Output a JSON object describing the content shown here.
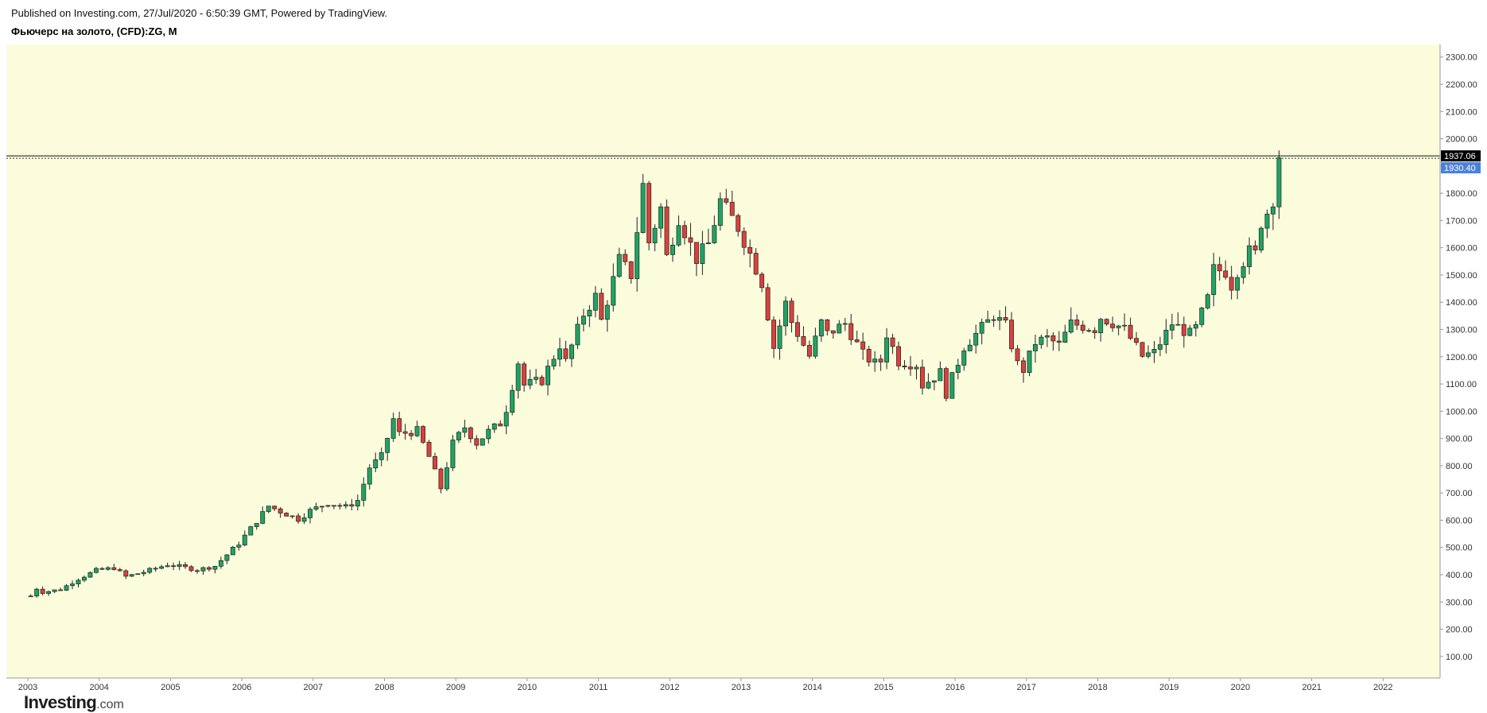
{
  "header": {
    "published": "Published on Investing.com, 27/Jul/2020 - 6:50:39 GMT, Powered by TradingView.",
    "symbol": "Фьючерс на золото, (CFD):ZG, M"
  },
  "logo": {
    "brand": "Investing",
    "suffix": ".com"
  },
  "colors": {
    "background": "#fafcdc",
    "up": "#1fa463",
    "down": "#d9413d",
    "last_price_bg": "#000000",
    "prev_price_bg": "#4a80d9"
  },
  "chart_data": {
    "type": "candlestick",
    "interval": "M",
    "y_range": [
      50,
      2340
    ],
    "y_ticks": [
      100,
      200,
      300,
      400,
      500,
      600,
      700,
      800,
      900,
      1000,
      1100,
      1200,
      1300,
      1400,
      1500,
      1600,
      1700,
      1800,
      1900,
      2000,
      2100,
      2200,
      2300
    ],
    "x_years": [
      "2003",
      "2004",
      "2005",
      "2006",
      "2007",
      "2008",
      "2009",
      "2010",
      "2011",
      "2012",
      "2013",
      "2014",
      "2015",
      "2016",
      "2017",
      "2018",
      "2019",
      "2020",
      "2021",
      "2022"
    ],
    "last_price": "1937.06",
    "prev_price": "1930.40",
    "grid": false,
    "anchors": [
      [
        "2003-01",
        322
      ],
      [
        "2003-02",
        350
      ],
      [
        "2003-03",
        336
      ],
      [
        "2003-06",
        346
      ],
      [
        "2003-09",
        385
      ],
      [
        "2003-12",
        416
      ],
      [
        "2004-03",
        425
      ],
      [
        "2004-05",
        393
      ],
      [
        "2004-08",
        410
      ],
      [
        "2004-12",
        437
      ],
      [
        "2005-02",
        430
      ],
      [
        "2005-05",
        418
      ],
      [
        "2005-08",
        432
      ],
      [
        "2005-12",
        515
      ],
      [
        "2006-05",
        652
      ],
      [
        "2006-07",
        632
      ],
      [
        "2006-10",
        604
      ],
      [
        "2006-12",
        635
      ],
      [
        "2007-03",
        664
      ],
      [
        "2007-06",
        648
      ],
      [
        "2007-08",
        673
      ],
      [
        "2007-10",
        794
      ],
      [
        "2007-12",
        834
      ],
      [
        "2008-02",
        971
      ],
      [
        "2008-03",
        917
      ],
      [
        "2008-06",
        928
      ],
      [
        "2008-08",
        833
      ],
      [
        "2008-10",
        718
      ],
      [
        "2008-12",
        882
      ],
      [
        "2009-02",
        942
      ],
      [
        "2009-04",
        883
      ],
      [
        "2009-06",
        926
      ],
      [
        "2009-08",
        955
      ],
      [
        "2009-09",
        1009
      ],
      [
        "2009-11",
        1180
      ],
      [
        "2009-12",
        1096
      ],
      [
        "2010-03",
        1113
      ],
      [
        "2010-06",
        1244
      ],
      [
        "2010-07",
        1181
      ],
      [
        "2010-10",
        1357
      ],
      [
        "2010-12",
        1421
      ],
      [
        "2011-01",
        1332
      ],
      [
        "2011-04",
        1556
      ],
      [
        "2011-06",
        1500
      ],
      [
        "2011-08",
        1829
      ],
      [
        "2011-09",
        1620
      ],
      [
        "2011-11",
        1746
      ],
      [
        "2011-12",
        1566
      ],
      [
        "2012-02",
        1711
      ],
      [
        "2012-05",
        1560
      ],
      [
        "2012-07",
        1614
      ],
      [
        "2012-09",
        1772
      ],
      [
        "2012-12",
        1675
      ],
      [
        "2013-02",
        1578
      ],
      [
        "2013-04",
        1472
      ],
      [
        "2013-06",
        1234
      ],
      [
        "2013-08",
        1396
      ],
      [
        "2013-09",
        1327
      ],
      [
        "2013-12",
        1202
      ],
      [
        "2014-02",
        1325
      ],
      [
        "2014-03",
        1284
      ],
      [
        "2014-06",
        1322
      ],
      [
        "2014-09",
        1208
      ],
      [
        "2014-11",
        1175
      ],
      [
        "2014-12",
        1184
      ],
      [
        "2015-01",
        1284
      ],
      [
        "2015-03",
        1183
      ],
      [
        "2015-06",
        1172
      ],
      [
        "2015-07",
        1095
      ],
      [
        "2015-10",
        1142
      ],
      [
        "2015-11",
        1065
      ],
      [
        "2016-02",
        1238
      ],
      [
        "2016-07",
        1351
      ],
      [
        "2016-09",
        1313
      ],
      [
        "2016-11",
        1173
      ],
      [
        "2016-12",
        1152
      ],
      [
        "2017-02",
        1253
      ],
      [
        "2017-04",
        1268
      ],
      [
        "2017-06",
        1242
      ],
      [
        "2017-08",
        1322
      ],
      [
        "2017-12",
        1303
      ],
      [
        "2018-01",
        1345
      ],
      [
        "2018-03",
        1325
      ],
      [
        "2018-05",
        1300
      ],
      [
        "2018-08",
        1202
      ],
      [
        "2018-10",
        1215
      ],
      [
        "2019-01",
        1322
      ],
      [
        "2019-04",
        1283
      ],
      [
        "2019-05",
        1305
      ],
      [
        "2019-07",
        1413
      ],
      [
        "2019-08",
        1520
      ],
      [
        "2019-10",
        1513
      ],
      [
        "2019-11",
        1463
      ],
      [
        "2019-12",
        1517
      ],
      [
        "2020-02",
        1585
      ],
      [
        "2020-03",
        1577
      ],
      [
        "2020-04",
        1694
      ],
      [
        "2020-05",
        1730
      ],
      [
        "2020-06",
        1781
      ],
      [
        "2020-07",
        1930
      ]
    ]
  }
}
